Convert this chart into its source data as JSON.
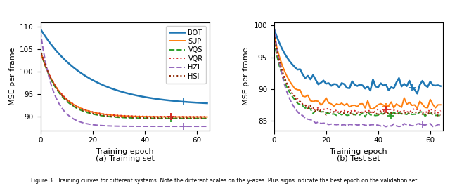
{
  "title_a": "(a) Training set",
  "title_b": "(b) Test set",
  "xlabel": "Training epoch",
  "ylabel": "MSE per frame",
  "caption": "Figure 3.  Training curves for different systems. Note the different scales on the y-axes. Plus signs indicate the best epoch on the validation set.",
  "legend_labels": [
    "BOT",
    "SUP",
    "VQS",
    "VQR",
    "HZI",
    "HSI"
  ],
  "colors": [
    "#1f77b4",
    "#ff7f0e",
    "#2ca02c",
    "#d62728",
    "#9467bd",
    "#8B2500"
  ],
  "linestyles": [
    "-",
    "-",
    "--",
    ":",
    "--",
    ":"
  ],
  "linewidths": [
    1.8,
    1.4,
    1.4,
    1.4,
    1.4,
    1.4
  ],
  "ylim_a": [
    87.0,
    111.0
  ],
  "ylim_b": [
    83.5,
    100.5
  ],
  "xlim": [
    0,
    65
  ],
  "yticks_a": [
    90,
    95,
    100,
    105,
    110
  ],
  "yticks_b": [
    85,
    90,
    95,
    100
  ],
  "xticks": [
    0,
    20,
    40,
    60
  ],
  "best_a_epochs": [
    55,
    50,
    50,
    50,
    55,
    null
  ],
  "best_b_epochs": [
    53,
    43,
    45,
    43,
    57,
    null
  ]
}
